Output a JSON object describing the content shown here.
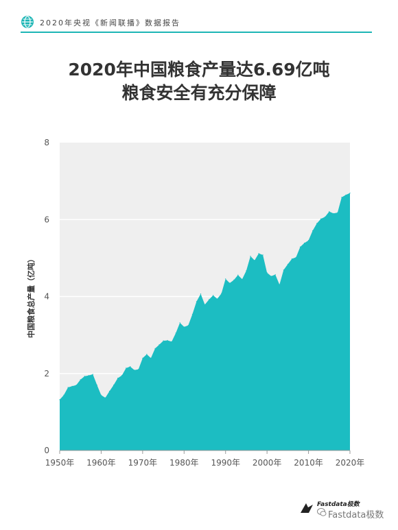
{
  "header": {
    "icon": "globe-icon",
    "text": "2020年央视《新闻联播》数据报告",
    "accent_color": "#1cb5b5"
  },
  "title": {
    "line1": "2020年中国粮食产量达6.69亿吨",
    "line2": "粮食安全有充分保障"
  },
  "chart_data": {
    "type": "area",
    "title": "2020年中国粮食产量达6.69亿吨 粮食安全有充分保障",
    "xlabel": "",
    "ylabel": "中国粮食总产量（亿吨）",
    "xlim": [
      1950,
      2020
    ],
    "ylim": [
      0,
      8
    ],
    "x_ticks": [
      "1950年",
      "1960年",
      "1970年",
      "1980年",
      "1990年",
      "2000年",
      "2010年",
      "2020年"
    ],
    "y_ticks": [
      "0",
      "2",
      "4",
      "6",
      "8"
    ],
    "grid": true,
    "background_color": "#efefef",
    "area_color": "#1cbdc2",
    "x": [
      1950,
      1951,
      1952,
      1953,
      1954,
      1955,
      1956,
      1957,
      1958,
      1959,
      1960,
      1961,
      1962,
      1963,
      1964,
      1965,
      1966,
      1967,
      1968,
      1969,
      1970,
      1971,
      1972,
      1973,
      1974,
      1975,
      1976,
      1977,
      1978,
      1979,
      1980,
      1981,
      1982,
      1983,
      1984,
      1985,
      1986,
      1987,
      1988,
      1989,
      1990,
      1991,
      1992,
      1993,
      1994,
      1995,
      1996,
      1997,
      1998,
      1999,
      2000,
      2001,
      2002,
      2003,
      2004,
      2005,
      2006,
      2007,
      2008,
      2009,
      2010,
      2011,
      2012,
      2013,
      2014,
      2015,
      2016,
      2017,
      2018,
      2019,
      2020
    ],
    "values": [
      1.32,
      1.44,
      1.64,
      1.67,
      1.7,
      1.84,
      1.93,
      1.95,
      1.98,
      1.7,
      1.44,
      1.37,
      1.54,
      1.7,
      1.88,
      1.95,
      2.14,
      2.18,
      2.09,
      2.11,
      2.4,
      2.5,
      2.4,
      2.65,
      2.75,
      2.85,
      2.86,
      2.83,
      3.05,
      3.32,
      3.21,
      3.25,
      3.54,
      3.87,
      4.07,
      3.79,
      3.92,
      4.03,
      3.94,
      4.08,
      4.46,
      4.35,
      4.43,
      4.56,
      4.45,
      4.67,
      5.05,
      4.94,
      5.12,
      5.08,
      4.62,
      4.53,
      4.57,
      4.31,
      4.69,
      4.84,
      4.98,
      5.02,
      5.29,
      5.39,
      5.46,
      5.71,
      5.9,
      6.02,
      6.07,
      6.21,
      6.16,
      6.18,
      6.58,
      6.64,
      6.69
    ]
  },
  "brand": {
    "mark_icon": "fastdata-logo-icon",
    "small_text": "Fastdata极数",
    "wechat_icon": "wechat-icon",
    "name": "Fastdata极数"
  }
}
